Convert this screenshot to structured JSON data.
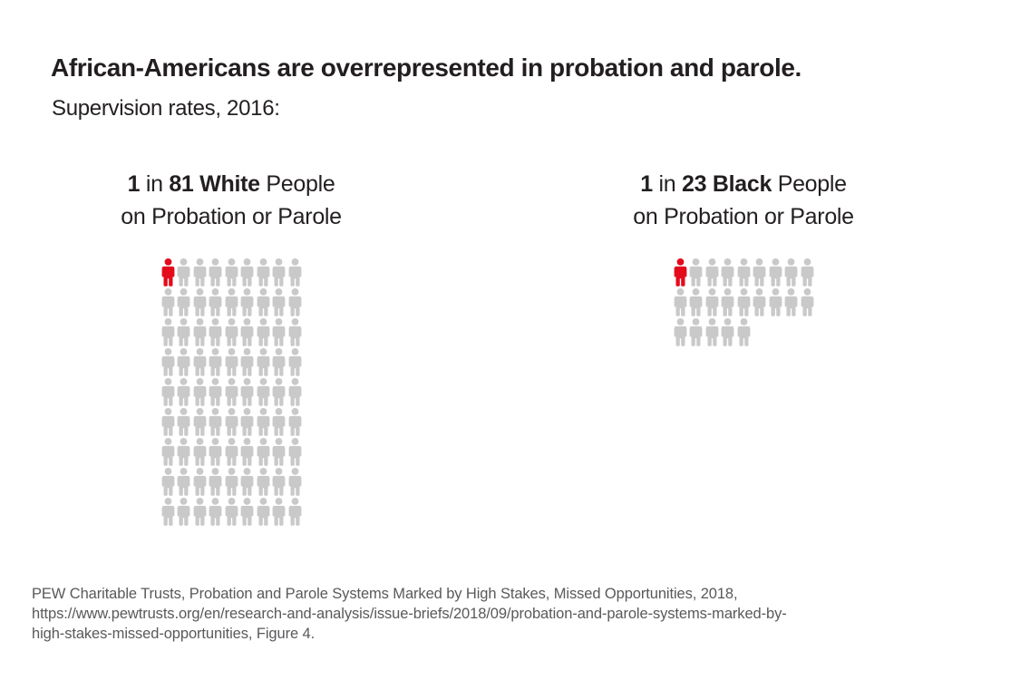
{
  "chart_data": {
    "type": "pictogram",
    "title": "African-Americans are overrepresented in probation and parole.",
    "subtitle": "Supervision rates, 2016:",
    "icons_per_row": 9,
    "icon": "person-icon",
    "colors": {
      "highlight_red": "#e30b1c",
      "icon_gray": "#c9c9c9",
      "text_dark": "#231f20",
      "footer_gray": "#58595b"
    },
    "groups": [
      {
        "name": "White",
        "ratio_text": "1 in 81",
        "denominator": 81,
        "total_icons": 81,
        "highlighted_icons": 1,
        "label_line1_parts": [
          {
            "text": "1",
            "bold": true
          },
          {
            "text": " in ",
            "bold": false
          },
          {
            "text": "81 White",
            "bold": true
          },
          {
            "text": " People",
            "bold": false
          }
        ],
        "label_line2": "on Probation or Parole"
      },
      {
        "name": "Black",
        "ratio_text": "1 in 23",
        "denominator": 23,
        "total_icons": 23,
        "highlighted_icons": 1,
        "label_line1_parts": [
          {
            "text": "1",
            "bold": true
          },
          {
            "text": " in ",
            "bold": false
          },
          {
            "text": "23 Black",
            "bold": true
          },
          {
            "text": " People",
            "bold": false
          }
        ],
        "label_line2": "on Probation or Parole"
      }
    ]
  },
  "footer": {
    "lines": [
      "PEW Charitable Trusts, Probation and Parole Systems Marked by High Stakes, Missed Opportunities, 2018,",
      "https://www.pewtrusts.org/en/research-and-analysis/issue-briefs/2018/09/probation-and-parole-systems-marked-by-",
      "high-stakes-missed-opportunities, Figure 4."
    ]
  }
}
